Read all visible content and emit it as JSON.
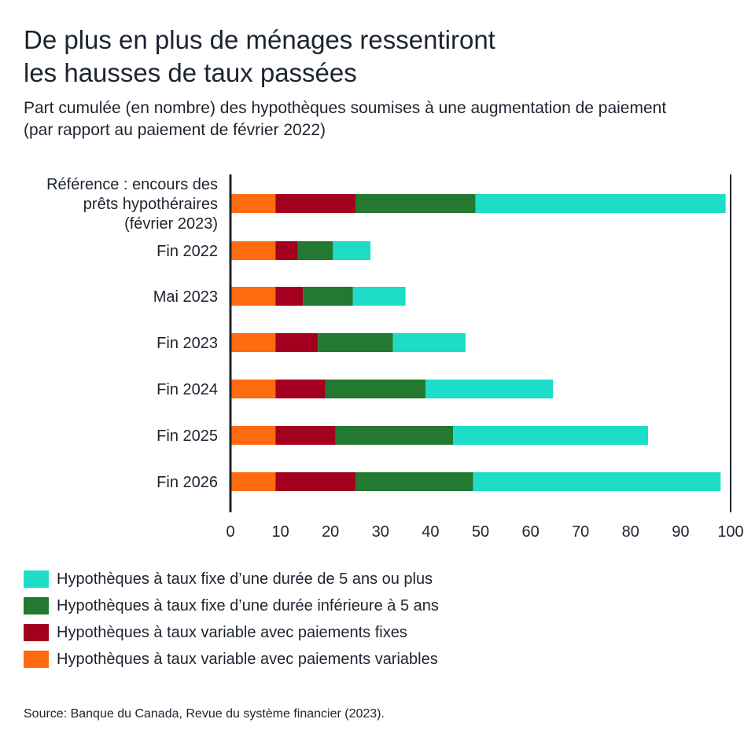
{
  "header": {
    "title_line1": "De plus en plus de ménages ressentiront",
    "title_line2": "les hausses de taux passées",
    "subtitle_line1": "Part cumulée (en nombre) des hypothèques soumises à une augmentation de paiement",
    "subtitle_line2": "(par rapport au paiement de février 2022)"
  },
  "source": "Source: Banque du Canada, Revue du système financier (2023).",
  "colors": {
    "fixed_5plus": "#1ddcc8",
    "fixed_under5": "#23792f",
    "variable_fixed_payments": "#a3001f",
    "variable_variable_payments": "#ff6b0f",
    "axis": "#1d2430"
  },
  "chart_data": {
    "type": "bar",
    "orientation": "horizontal",
    "stacked": true,
    "categories": [
      [
        "Référence : encours des",
        "prêts hypothéraires",
        "(février 2023)"
      ],
      [
        "Fin 2022"
      ],
      [
        "Mai 2023"
      ],
      [
        "Fin 2023"
      ],
      [
        "Fin 2024"
      ],
      [
        "Fin 2025"
      ],
      [
        "Fin 2026"
      ]
    ],
    "series": [
      {
        "name": "Hypothèques à taux variable avec paiements variables",
        "color": "#ff6b0f",
        "values": [
          9,
          9,
          9,
          9,
          9,
          9,
          9
        ]
      },
      {
        "name": "Hypothèques à taux variable avec paiements fixes",
        "color": "#a3001f",
        "values": [
          16,
          4.5,
          5.5,
          8.5,
          10,
          12,
          16
        ]
      },
      {
        "name": "Hypothèques à taux fixe d’une durée inférieure à 5 ans",
        "color": "#23792f",
        "values": [
          24,
          7,
          10,
          15,
          20,
          23.5,
          23.5
        ]
      },
      {
        "name": "Hypothèques à taux fixe d’une durée de 5 ans ou plus",
        "color": "#1ddcc8",
        "values": [
          50,
          7.5,
          10.5,
          14.5,
          25.5,
          39,
          49.5
        ]
      }
    ],
    "xlim": [
      0,
      100
    ],
    "xticks": [
      0,
      10,
      20,
      30,
      40,
      50,
      60,
      70,
      80,
      90,
      100
    ],
    "reference_line_x": 100,
    "legend_order": [
      3,
      2,
      1,
      0
    ],
    "legend_position": "bottom"
  }
}
